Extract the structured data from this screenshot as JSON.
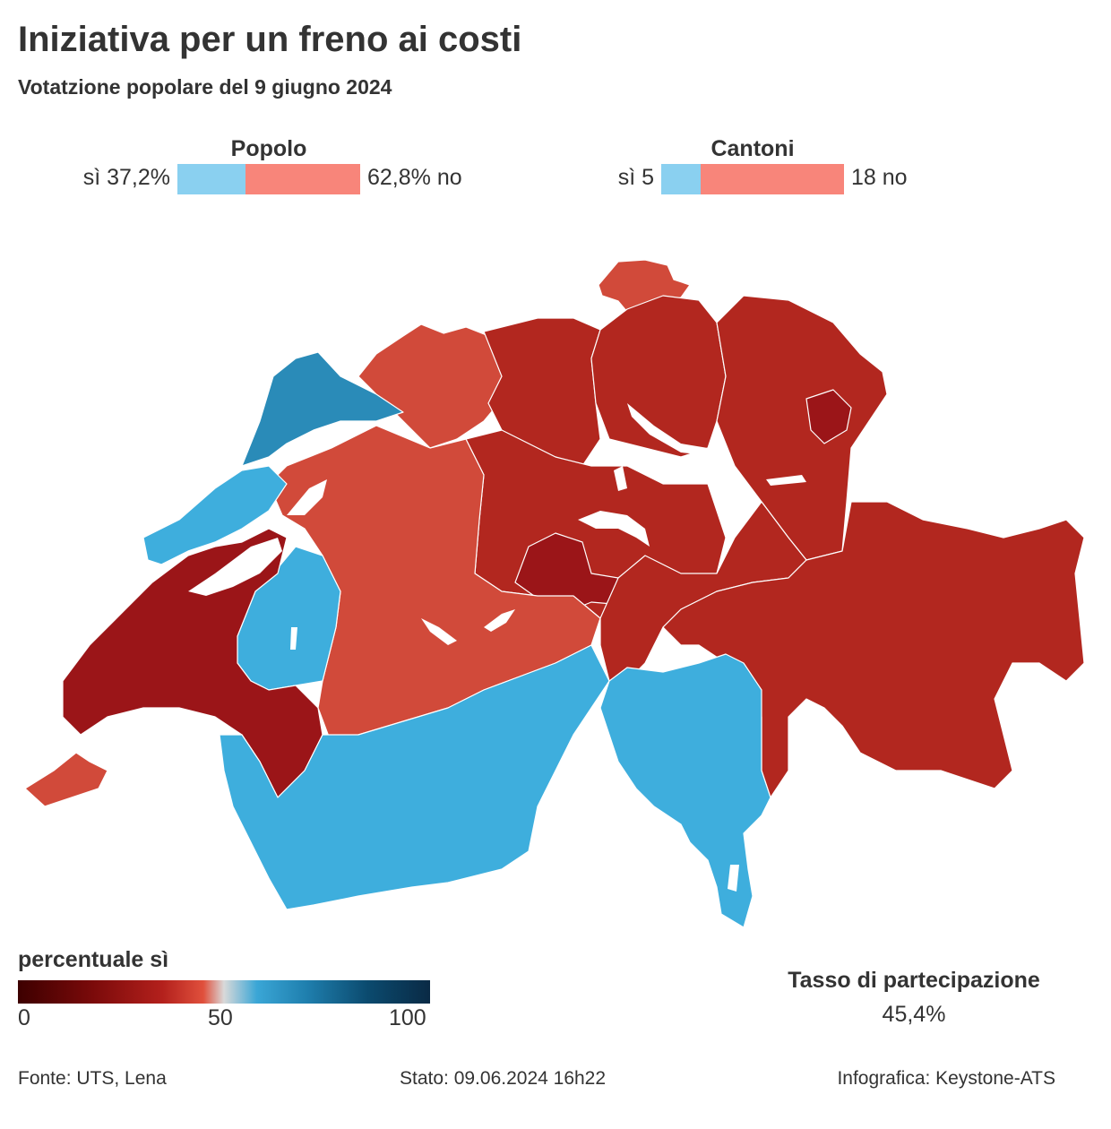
{
  "header": {
    "title": "Iniziativa per un freno ai costi",
    "subtitle": "Votatzione popolare del 9 giugno 2024"
  },
  "results": {
    "popolo": {
      "heading": "Popolo",
      "yes_label": "sì 37,2%",
      "no_label": "62,8% no",
      "yes_fraction": 0.372,
      "no_fraction": 0.628
    },
    "cantoni": {
      "heading": "Cantoni",
      "yes_label": "sì 5",
      "no_label": "18 no",
      "yes_count": 5,
      "no_count": 18
    }
  },
  "colors": {
    "yes": "#8ad0f0",
    "no": "#f8857a",
    "dark_red": "#9b1518",
    "mid_red": "#b2271f",
    "red": "#d14a3a",
    "light_blue": "#3eaedd",
    "mid_blue": "#2a8bb8",
    "border": "#ffffff",
    "lake": "#ffffff"
  },
  "legend": {
    "title": "percentuale sì",
    "ticks": [
      "0",
      "50",
      "100"
    ]
  },
  "turnout": {
    "title": "Tasso di partecipazione",
    "value": "45,4%"
  },
  "footer": {
    "source": "Fonte: UTS, Lena",
    "status": "Stato: 09.06.2024 16h22",
    "credit": "Infografica: Keystone-ATS"
  }
}
